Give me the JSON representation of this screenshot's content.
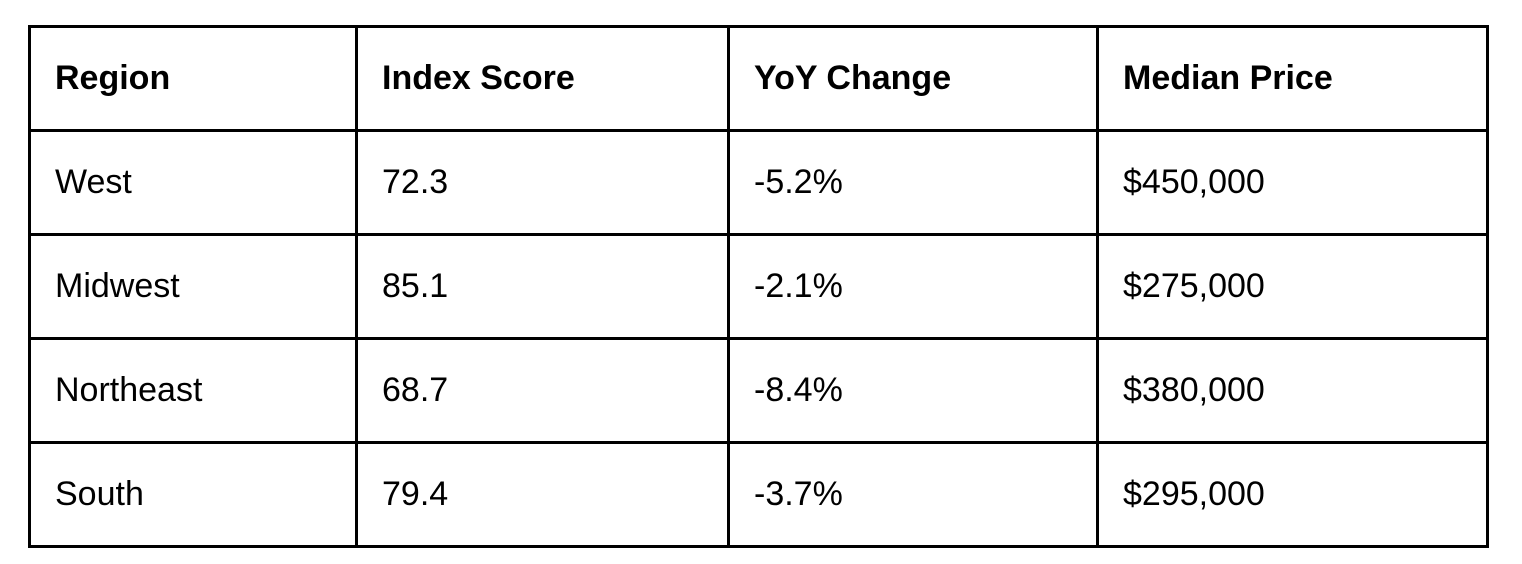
{
  "table": {
    "columns": [
      "Region",
      "Index Score",
      "YoY Change",
      "Median Price"
    ],
    "rows": [
      [
        "West",
        "72.3",
        "-5.2%",
        "$450,000"
      ],
      [
        "Midwest",
        "85.1",
        "-2.1%",
        "$275,000"
      ],
      [
        "Northeast",
        "68.7",
        "-8.4%",
        "$380,000"
      ],
      [
        "South",
        "79.4",
        "-3.7%",
        "$295,000"
      ]
    ]
  },
  "chart_data": {
    "type": "table",
    "columns": [
      "Region",
      "Index Score",
      "YoY Change",
      "Median Price"
    ],
    "rows": [
      {
        "region": "West",
        "index_score": 72.3,
        "yoy_change_pct": -5.2,
        "median_price_usd": 450000
      },
      {
        "region": "Midwest",
        "index_score": 85.1,
        "yoy_change_pct": -2.1,
        "median_price_usd": 275000
      },
      {
        "region": "Northeast",
        "index_score": 68.7,
        "yoy_change_pct": -8.4,
        "median_price_usd": 380000
      },
      {
        "region": "South",
        "index_score": 79.4,
        "yoy_change_pct": -3.7,
        "median_price_usd": 295000
      }
    ]
  },
  "colors": {
    "border": "#000000",
    "text": "#000000",
    "background": "#ffffff"
  }
}
